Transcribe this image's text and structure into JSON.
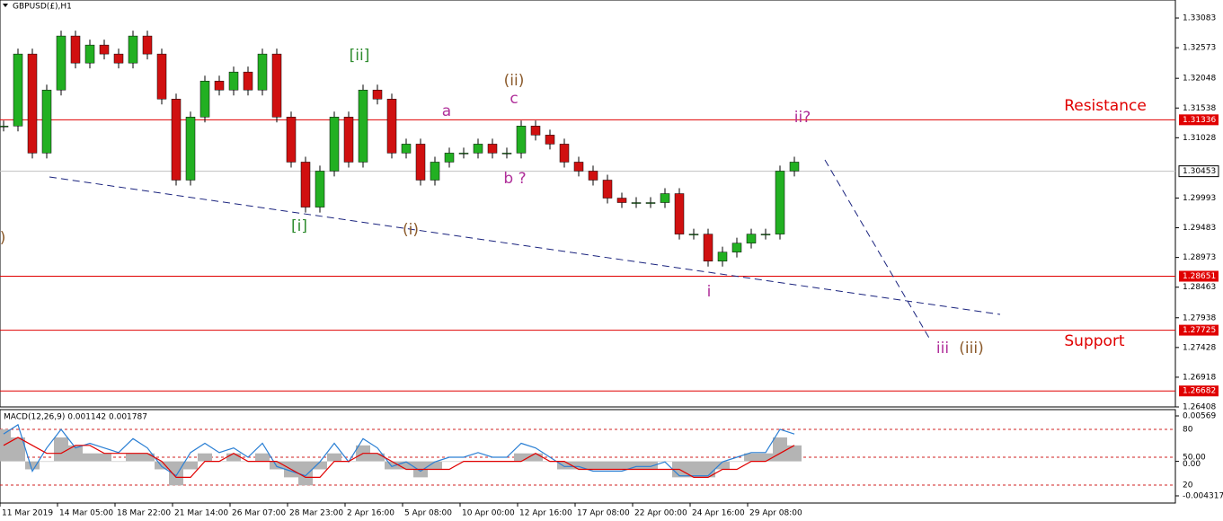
{
  "chart_data": {
    "type": "candlestick",
    "title": "GBPUSD(£),H1",
    "categories": [
      "11 Mar 2019",
      null,
      null,
      null,
      "14 Mar 05:00",
      null,
      null,
      null,
      "18 Mar 22:00",
      null,
      null,
      null,
      "21 Mar 14:00",
      null,
      null,
      null,
      "26 Mar 07:00",
      null,
      null,
      null,
      "28 Mar 23:00",
      null,
      null,
      null,
      "2 Apr 16:00",
      null,
      null,
      null,
      "5 Apr 08:00",
      null,
      null,
      null,
      "10 Apr 00:00",
      null,
      null,
      null,
      "12 Apr 16:00",
      null,
      null,
      null,
      "17 Apr 08:00",
      null,
      null,
      null,
      "22 Apr 00:00",
      null,
      null,
      null,
      "24 Apr 16:00",
      null,
      null,
      null,
      "29 Apr 08:00",
      null,
      null,
      null
    ],
    "values": [
      1.31229,
      1.32465,
      1.30765,
      1.31847,
      1.32774,
      1.3231,
      1.32619,
      1.32465,
      1.3231,
      1.32774,
      1.32465,
      1.31692,
      1.30301,
      1.31383,
      1.32001,
      1.31847,
      1.32156,
      1.31847,
      1.32465,
      1.31383,
      1.3061,
      1.29837,
      1.30456,
      1.31383,
      1.3061,
      1.31847,
      1.31692,
      1.30765,
      1.30919,
      1.30301,
      1.3061,
      1.30765,
      1.30765,
      1.30919,
      1.30765,
      1.30765,
      1.31229,
      1.31074,
      1.30919,
      1.3061,
      1.30456,
      1.30301,
      1.29992,
      1.29915,
      1.29915,
      1.29915,
      1.30069,
      1.29374,
      1.29374,
      1.2891,
      1.29065,
      1.29219,
      1.29374,
      1.29374,
      1.30456,
      1.3061
    ],
    "up_color": "#22b022",
    "down_color": "#d01010",
    "ylim": [
      1.26408,
      1.33392
    ],
    "yticks": [
      1.33083,
      1.32573,
      1.32048,
      1.31538,
      1.31028,
      1.29993,
      1.29483,
      1.28973,
      1.28463,
      1.27938,
      1.27428,
      1.26918,
      1.26408
    ],
    "current_price": 1.30453,
    "levels": [
      1.31336,
      1.28651,
      1.27725,
      1.26682
    ],
    "level_color": "#e00000",
    "annotations": [
      "[ii]",
      "[i]",
      "(ii)",
      "c",
      "a",
      "b ?",
      "(i)",
      "ii?",
      "i",
      "iii",
      "(iii)",
      ")",
      "Resistance",
      "Support"
    ],
    "indicator": {
      "title": "MACD(12,26,9) 0.001142 0.001787",
      "ylim": [
        -0.004317,
        0.00569
      ],
      "yticks": [
        0.00569,
        {
          "value": 0,
          "label": "0.00"
        },
        -0.004317
      ],
      "histogram": [
        0.004,
        0.003,
        -0.001,
        0,
        0.003,
        0.002,
        0.001,
        0.001,
        0,
        0.001,
        0.001,
        -0.001,
        -0.003,
        -0.001,
        0.001,
        0,
        0.001,
        0,
        0.001,
        -0.001,
        -0.002,
        -0.003,
        -0.001,
        0.001,
        0,
        0.002,
        0.001,
        -0.001,
        -0.001,
        -0.002,
        -0.001,
        0,
        0,
        0,
        0,
        0,
        0.001,
        0.001,
        0,
        -0.001,
        -0.001,
        -0.001,
        -0.001,
        -0.001,
        -0.001,
        -0.001,
        0,
        -0.002,
        -0.002,
        -0.002,
        -0.001,
        0,
        0.001,
        0.001,
        0.003,
        0.002
      ],
      "signal": [
        0.002,
        0.003,
        0.002,
        0.001,
        0.001,
        0.002,
        0.002,
        0.001,
        0.001,
        0.001,
        0.001,
        0,
        -0.002,
        -0.002,
        0,
        0,
        0.001,
        0,
        0,
        0,
        -0.001,
        -0.002,
        -0.002,
        0,
        0,
        0.001,
        0.001,
        0,
        -0.001,
        -0.001,
        -0.001,
        -0.001,
        0,
        0,
        0,
        0,
        0,
        0.001,
        0,
        0,
        -0.001,
        -0.001,
        -0.001,
        -0.001,
        -0.001,
        -0.001,
        -0.001,
        -0.001,
        -0.002,
        -0.002,
        -0.001,
        -0.001,
        0,
        0,
        0.001,
        0.002
      ],
      "histogram_color": "#b4b4b4",
      "signal_color": "#e00000",
      "oscillator": {
        "ylim": [
          8.4,
          94.5
        ],
        "yticks": [
          80,
          {
            "value": 50,
            "label": "50.00"
          },
          20
        ],
        "color": "#2a7fd4",
        "values": [
          75,
          85,
          35,
          60,
          80,
          60,
          65,
          60,
          55,
          70,
          60,
          40,
          30,
          55,
          65,
          55,
          60,
          50,
          65,
          40,
          35,
          30,
          45,
          65,
          45,
          70,
          60,
          40,
          45,
          35,
          45,
          50,
          50,
          55,
          50,
          50,
          65,
          60,
          50,
          40,
          40,
          35,
          35,
          35,
          40,
          40,
          45,
          30,
          30,
          30,
          45,
          50,
          55,
          55,
          80,
          75
        ]
      }
    }
  }
}
